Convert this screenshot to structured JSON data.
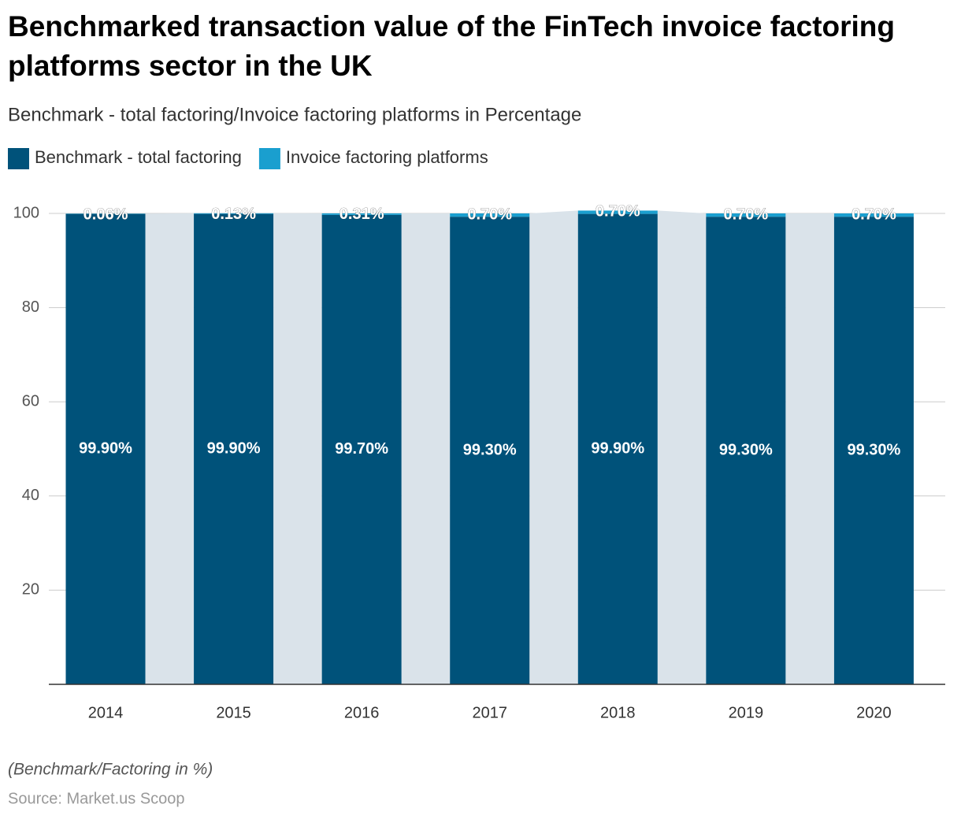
{
  "chart_data": {
    "type": "stacked_bar",
    "title": "Benchmarked transaction value of the FinTech invoice factoring platforms sector in the UK",
    "subtitle": "Benchmark - total factoring/Invoice factoring platforms in Percentage",
    "categories": [
      "2014",
      "2015",
      "2016",
      "2017",
      "2018",
      "2019",
      "2020"
    ],
    "series": [
      {
        "name": "Benchmark - total factoring",
        "color": "#00527a",
        "values": [
          99.9,
          99.9,
          99.7,
          99.3,
          99.9,
          99.3,
          99.3
        ],
        "value_labels": [
          "99.90%",
          "99.90%",
          "99.70%",
          "99.30%",
          "99.90%",
          "99.30%",
          "99.30%"
        ]
      },
      {
        "name": "Invoice factoring platforms",
        "color": "#1a9fcf",
        "values": [
          0.06,
          0.13,
          0.31,
          0.7,
          0.7,
          0.7,
          0.7
        ],
        "value_labels": [
          "0.06%",
          "0.13%",
          "0.31%",
          "0.70%",
          "0.70%",
          "0.70%",
          "0.70%"
        ]
      }
    ],
    "ylim": [
      0,
      100
    ],
    "yticks": [
      20,
      40,
      60,
      80,
      100
    ],
    "grid": true,
    "connector_color": "#dae3ea",
    "note": "(Benchmark/Factoring in %)",
    "source": "Source: Market.us Scoop"
  }
}
